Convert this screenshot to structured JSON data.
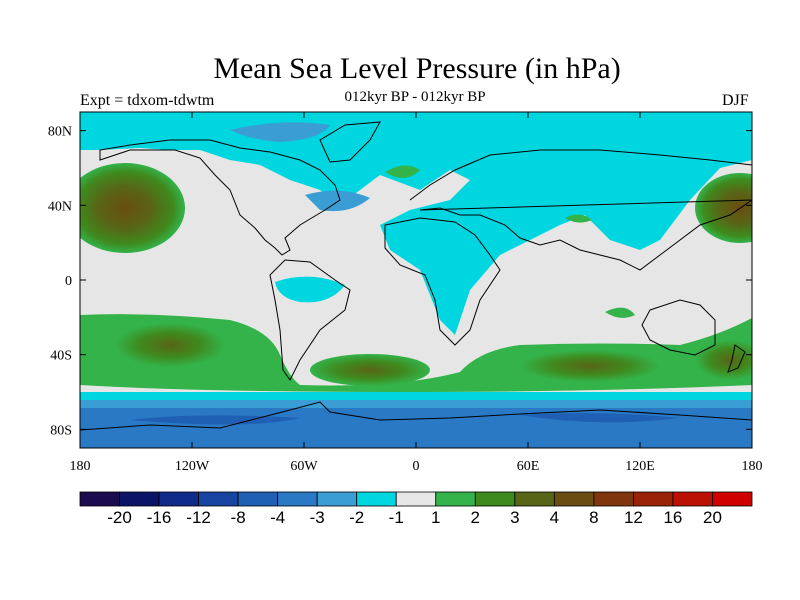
{
  "header": {
    "title": "Mean Sea Level Pressure (in hPa)",
    "expt": "Expt = tdxom-tdwtm",
    "subtitle": "012kyr BP - 012kyr BP",
    "season": "DJF"
  },
  "map": {
    "lon_range": [
      -180,
      180
    ],
    "lat_range": [
      -90,
      90
    ],
    "background_color": "#e6e6e6",
    "lon_ticks": [
      "180",
      "120W",
      "60W",
      "0",
      "60E",
      "120E",
      "180"
    ],
    "lat_ticks": [
      "80N",
      "40N",
      "0",
      "40S",
      "80S"
    ]
  },
  "colorbar": {
    "colors": [
      "#1b0b4f",
      "#0b1466",
      "#0e2b8a",
      "#1744a0",
      "#1f5fb4",
      "#2a79c5",
      "#3a9ed4",
      "#00d6e0",
      "#e6e6e6",
      "#33b34a",
      "#3f8a1e",
      "#586516",
      "#6a4d11",
      "#80360d",
      "#9a2207",
      "#bb1104",
      "#d00000"
    ],
    "labels": [
      "-20",
      "-16",
      "-12",
      "-8",
      "-4",
      "-3",
      "-2",
      "-1",
      "1",
      "2",
      "3",
      "4",
      "8",
      "12",
      "16",
      "20"
    ]
  }
}
